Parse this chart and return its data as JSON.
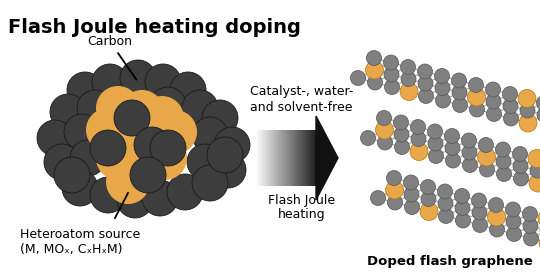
{
  "title": "Flash Joule heating doping",
  "title_fontsize": 14,
  "title_fontweight": "bold",
  "bg_color": "#ffffff",
  "carbon_color": "#3d3d3d",
  "hetero_color": "#E8A84A",
  "carbon_edge": "#1a1a1a",
  "hetero_edge": "#b07818",
  "graphene_carbon_color": "#808080",
  "graphene_hetero_color": "#E8A84A",
  "label_carbon": "Carbon",
  "label_heteroatom": "Heteroatom source",
  "label_heteroatom2": "(M, MOₓ, CₓHₓM)",
  "label_catalyst": "Catalyst-, water-",
  "label_solvent": "and solvent-free",
  "label_flash": "Flash Joule",
  "label_heating": "heating",
  "label_doped": "Doped flash graphene",
  "arrow_label_fontsize": 9.0,
  "cluster_label_fontsize": 9.0,
  "doped_label_fontsize": 9.5
}
